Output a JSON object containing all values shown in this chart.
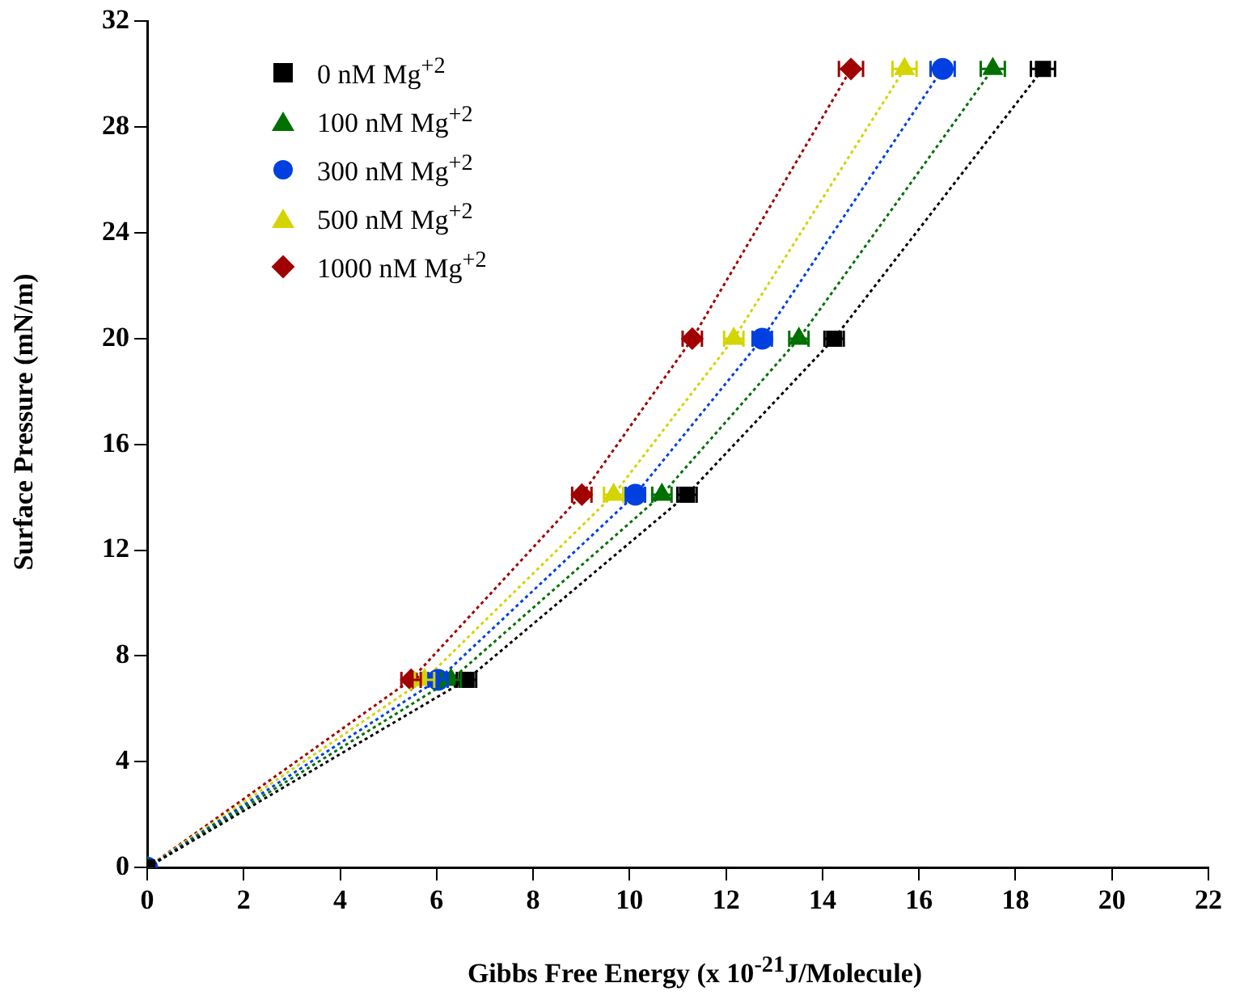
{
  "chart_data": {
    "type": "line",
    "xlabel": "Gibbs Free Energy (x 10$^{-21}$J/Molecule)",
    "ylabel": "Surface Pressure (mN/m)",
    "xlim": [
      0,
      22
    ],
    "xticks": [
      0,
      2,
      4,
      6,
      8,
      10,
      12,
      14,
      16,
      18,
      20,
      22
    ],
    "ylim": [
      0,
      32
    ],
    "yticks": [
      0,
      4,
      8,
      12,
      16,
      20,
      24,
      28,
      32
    ],
    "grid": false,
    "legend": "top left",
    "line_style": "dotted",
    "series": [
      {
        "name": "0 nM Mg$^{+2}$",
        "color": "#000000",
        "marker": "square",
        "x": [
          0,
          6.62,
          11.19,
          14.24,
          18.57
        ],
        "values": [
          0,
          7.1,
          14.1,
          20.0,
          30.2
        ],
        "xerrors": [
          null,
          0.2,
          0.2,
          0.2,
          0.25
        ]
      },
      {
        "name": "100 nM Mg$^{+2}$",
        "color": "#007000",
        "marker": "triangle",
        "x": [
          0,
          6.3,
          10.67,
          13.51,
          17.53
        ],
        "values": [
          0,
          7.1,
          14.1,
          20.0,
          30.2
        ],
        "xerrors": [
          null,
          0.2,
          0.2,
          0.2,
          0.25
        ]
      },
      {
        "name": "300 nM Mg$^{+2}$",
        "color": "#0040e0",
        "marker": "circle",
        "x": [
          0,
          6.03,
          10.12,
          12.75,
          16.49
        ],
        "values": [
          0,
          7.1,
          14.1,
          20.0,
          30.2
        ],
        "xerrors": [
          null,
          0.2,
          0.2,
          0.2,
          0.25
        ]
      },
      {
        "name": "500 nM Mg$^{+2}$",
        "color": "#d4d400",
        "marker": "triangle",
        "x": [
          0,
          5.75,
          9.67,
          12.16,
          15.7
        ],
        "values": [
          0,
          7.1,
          14.1,
          20.0,
          30.2
        ],
        "xerrors": [
          null,
          0.2,
          0.2,
          0.2,
          0.25
        ]
      },
      {
        "name": "1000 nM Mg$^{+2}$",
        "color": "#a00000",
        "marker": "diamond",
        "x": [
          0,
          5.47,
          9.01,
          11.3,
          14.59
        ],
        "values": [
          0,
          7.1,
          14.1,
          20.0,
          30.2
        ],
        "xerrors": [
          null,
          0.2,
          0.2,
          0.2,
          0.25
        ]
      }
    ]
  }
}
